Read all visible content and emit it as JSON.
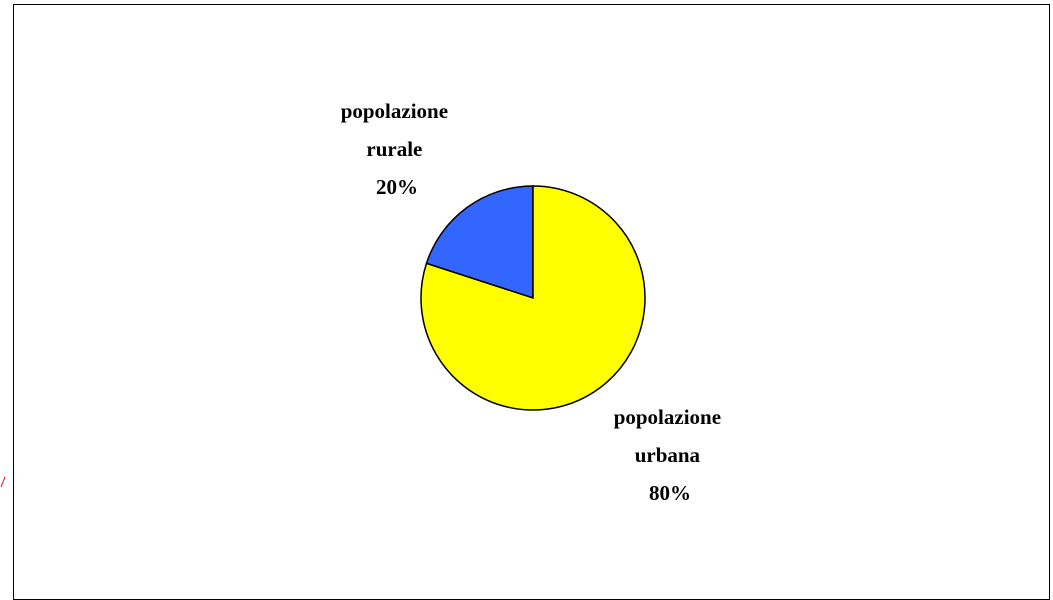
{
  "chart_data": {
    "type": "pie",
    "title": "",
    "slices": [
      {
        "name_lines": [
          "popolazione",
          "rurale"
        ],
        "percent_label": "20%",
        "value": 20,
        "color": "#3366FF"
      },
      {
        "name_lines": [
          "popolazione",
          "urbana"
        ],
        "percent_label": "80%",
        "value": 80,
        "color": "#FFFF00"
      }
    ],
    "legend": "none"
  },
  "colors": {
    "outline": "#000000",
    "background": "#FFFFFF",
    "stray_mark": "#FF0000"
  }
}
